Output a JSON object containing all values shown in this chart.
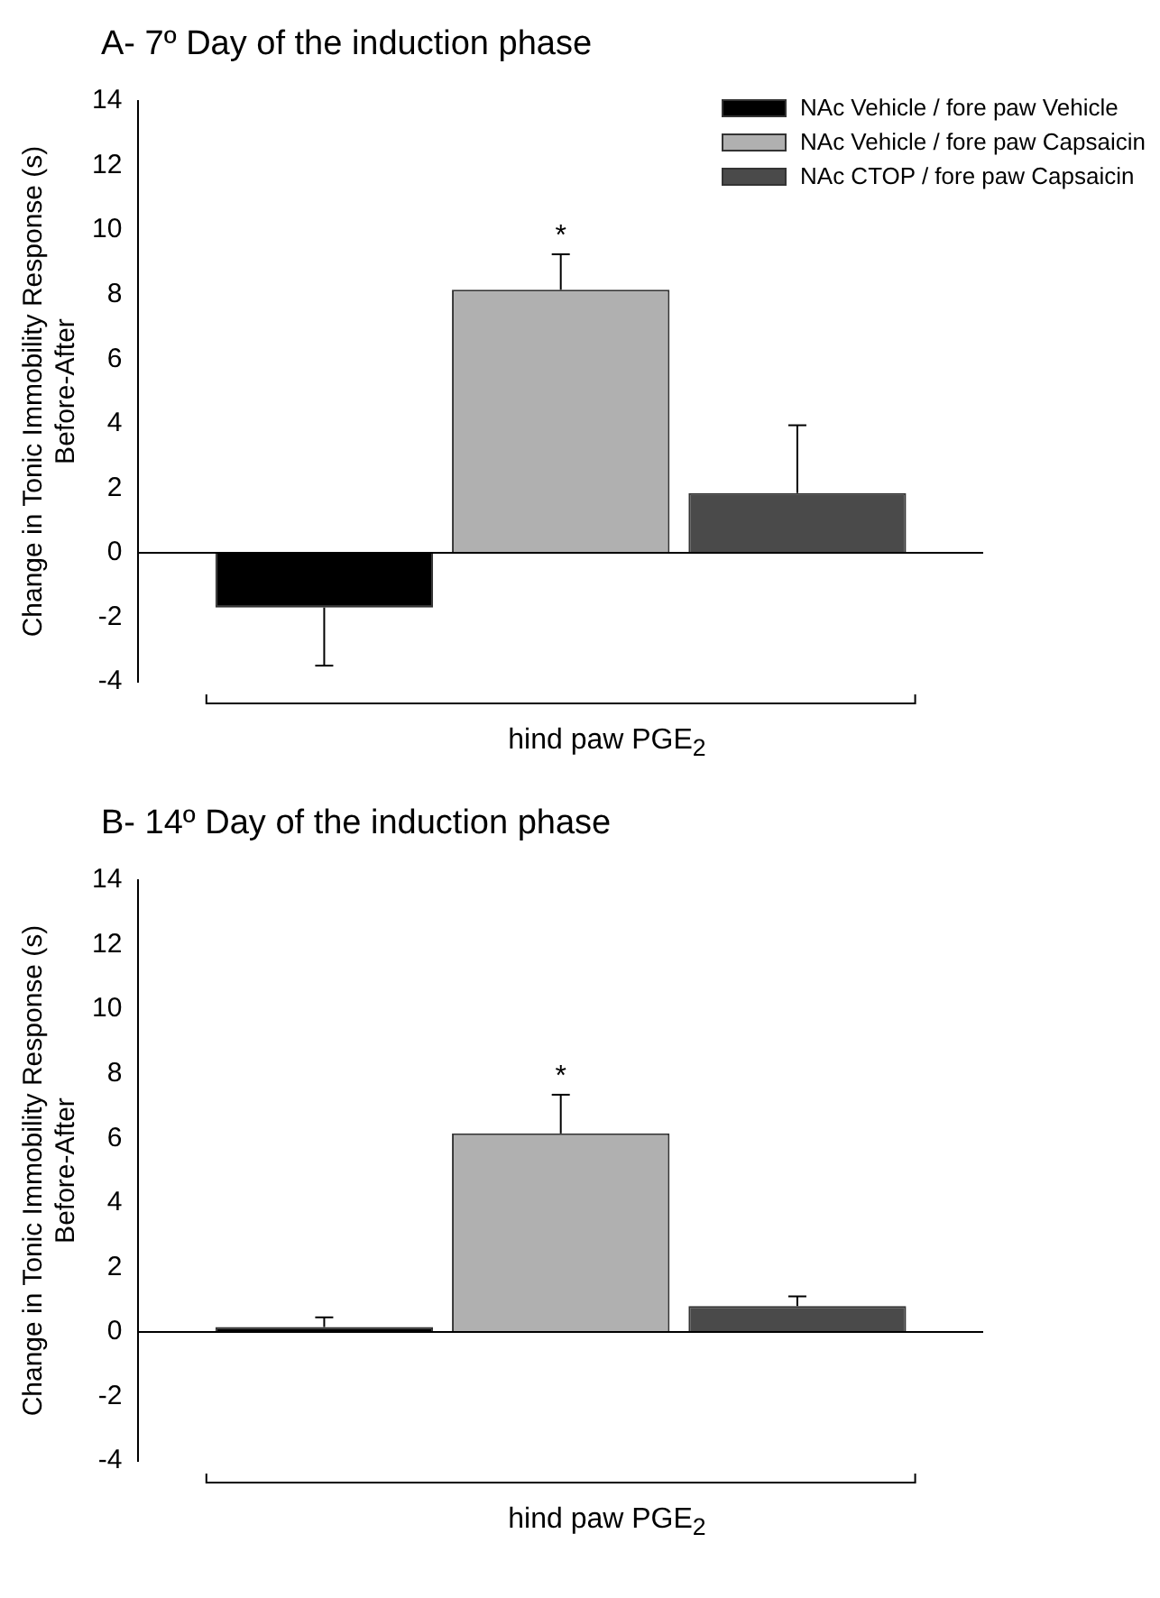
{
  "chart_data": [
    {
      "type": "bar",
      "title": "A- 7º Day of the induction phase",
      "ylabel": "Change in Tonic Immobility Response (s)\nBefore-After",
      "xlabel": "hind paw PGE$_{2}$",
      "categories": [
        null
      ],
      "series": [
        {
          "name": "NAc Vehicle / fore paw Vehicle",
          "color": "#000000",
          "values": [
            -1.7
          ],
          "errors": [
            [
              -3.5,
              -1.7
            ]
          ]
        },
        {
          "name": "NAc Vehicle / fore paw Capsaicin",
          "color": "#b0b0b0",
          "values": [
            8.15
          ],
          "errors": [
            [
              8.15,
              9.25
            ]
          ]
        },
        {
          "name": "NAc CTOP / fore paw Capsaicin",
          "color": "#4a4a4a",
          "values": [
            1.85
          ],
          "errors": [
            [
              1.85,
              3.95
            ]
          ]
        }
      ],
      "ylim": [
        -4,
        14
      ],
      "yticks": [
        -4,
        -2,
        0,
        2,
        4,
        6,
        8,
        10,
        12,
        14
      ],
      "legend": "top right",
      "annotations": [
        "*"
      ]
    },
    {
      "type": "bar",
      "title": "B- 14º Day of the induction phase",
      "ylabel": "Change in Tonic Immobility Response (s)\nBefore-After",
      "xlabel": "hind paw PGE$_{2}$",
      "categories": [
        null
      ],
      "series": [
        {
          "color": "#000000",
          "values": [
            0.15
          ],
          "errors": [
            [
              0.15,
              0.45
            ]
          ]
        },
        {
          "color": "#b0b0b0",
          "values": [
            6.15
          ],
          "errors": [
            [
              6.15,
              7.35
            ]
          ]
        },
        {
          "color": "#4a4a4a",
          "values": [
            0.8
          ],
          "errors": [
            [
              0.8,
              1.1
            ]
          ]
        }
      ],
      "ylim": [
        -4,
        14
      ],
      "yticks": [
        -4,
        -2,
        0,
        2,
        4,
        6,
        8,
        10,
        12,
        14
      ],
      "annotations": [
        "*"
      ]
    }
  ]
}
